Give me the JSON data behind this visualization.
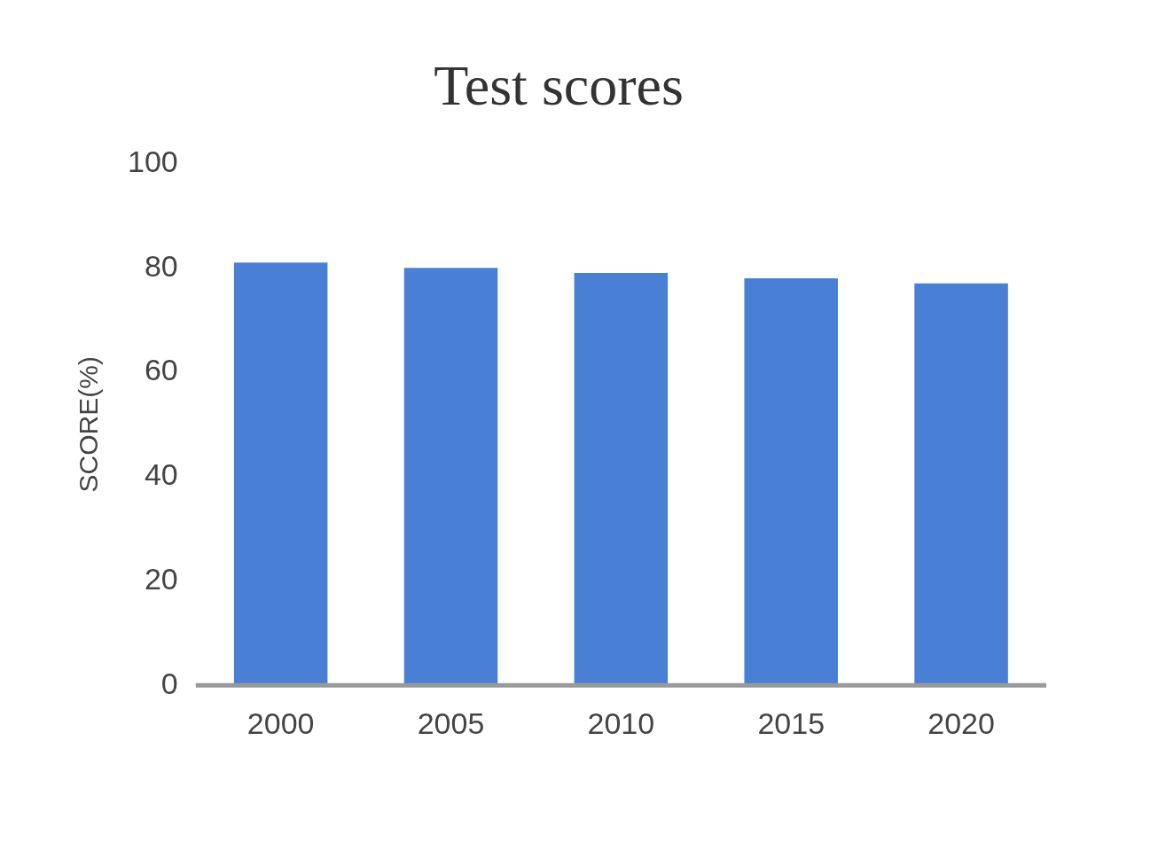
{
  "chart_data": {
    "type": "bar",
    "title": "Test scores",
    "ylabel": "SCORE(%)",
    "categories": [
      "2000",
      "2005",
      "2010",
      "2015",
      "2020"
    ],
    "values": [
      81,
      80,
      79,
      78,
      77
    ],
    "color": "#4a7fd6",
    "ylim": [
      0,
      100
    ],
    "yticks": [
      0,
      20,
      40,
      60,
      80,
      100
    ],
    "grid": false,
    "legend": false
  }
}
